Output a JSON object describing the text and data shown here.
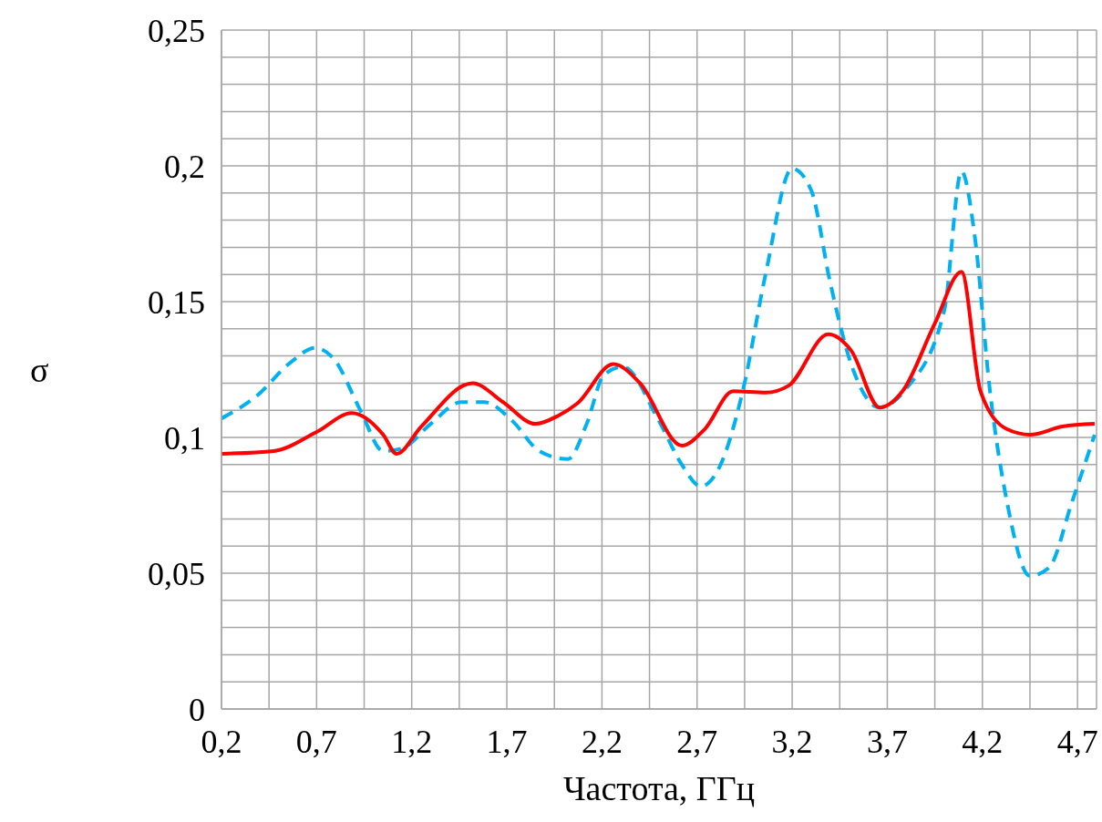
{
  "chart_data": {
    "type": "line",
    "xlabel": "Частота, ГГц",
    "ylabel": "σ",
    "xlim": [
      0.2,
      4.8
    ],
    "ylim": [
      0,
      0.25
    ],
    "xticks": [
      {
        "value": 0.2,
        "label": "0,2"
      },
      {
        "value": 0.45,
        "label": null
      },
      {
        "value": 0.7,
        "label": "0,7"
      },
      {
        "value": 0.95,
        "label": null
      },
      {
        "value": 1.2,
        "label": "1,2"
      },
      {
        "value": 1.45,
        "label": null
      },
      {
        "value": 1.7,
        "label": "1,7"
      },
      {
        "value": 1.95,
        "label": null
      },
      {
        "value": 2.2,
        "label": "2,2"
      },
      {
        "value": 2.45,
        "label": null
      },
      {
        "value": 2.7,
        "label": "2,7"
      },
      {
        "value": 2.95,
        "label": null
      },
      {
        "value": 3.2,
        "label": "3,2"
      },
      {
        "value": 3.45,
        "label": null
      },
      {
        "value": 3.7,
        "label": "3,7"
      },
      {
        "value": 3.95,
        "label": null
      },
      {
        "value": 4.2,
        "label": "4,2"
      },
      {
        "value": 4.45,
        "label": null
      },
      {
        "value": 4.7,
        "label": "4,7"
      }
    ],
    "yticks": [
      0,
      {
        "value": 0.01,
        "label": null
      },
      {
        "value": 0.02,
        "label": null
      },
      {
        "value": 0.03,
        "label": null
      },
      {
        "value": 0.04,
        "label": null
      },
      {
        "value": 0.05,
        "label": "0,05"
      },
      {
        "value": 0.06,
        "label": null
      },
      {
        "value": 0.07,
        "label": null
      },
      {
        "value": 0.08,
        "label": null
      },
      {
        "value": 0.09,
        "label": null
      },
      {
        "value": 0.1,
        "label": "0,1"
      },
      {
        "value": 0.11,
        "label": null
      },
      {
        "value": 0.12,
        "label": null
      },
      {
        "value": 0.13,
        "label": null
      },
      {
        "value": 0.14,
        "label": null
      },
      {
        "value": 0.15,
        "label": "0,15"
      },
      {
        "value": 0.16,
        "label": null
      },
      {
        "value": 0.17,
        "label": null
      },
      {
        "value": 0.18,
        "label": null
      },
      {
        "value": 0.19,
        "label": null
      },
      {
        "value": 0.2,
        "label": "0,2"
      },
      {
        "value": 0.21,
        "label": null
      },
      {
        "value": 0.22,
        "label": null
      },
      {
        "value": 0.23,
        "label": null
      },
      {
        "value": 0.24,
        "label": null
      },
      {
        "value": 0.25,
        "label": "0,25"
      }
    ],
    "grid": true,
    "marker": "none",
    "series": [
      {
        "color": "#00b0f0",
        "line_style": "dashed",
        "x": [
          0.2,
          0.38,
          0.57,
          0.69,
          0.79,
          0.93,
          1.05,
          1.15,
          1.3,
          1.46,
          1.58,
          1.73,
          1.87,
          2.02,
          2.12,
          2.21,
          2.31,
          2.5,
          2.62,
          2.72,
          2.81,
          2.94,
          3.06,
          3.2,
          3.3,
          3.4,
          3.51,
          3.66,
          3.8,
          4.0,
          4.09,
          4.16,
          4.24,
          4.33,
          4.45,
          4.55,
          4.67,
          4.79
        ],
        "values": [
          0.107,
          0.115,
          0.128,
          0.133,
          0.129,
          0.11,
          0.095,
          0.096,
          0.105,
          0.113,
          0.113,
          0.106,
          0.095,
          0.092,
          0.105,
          0.123,
          0.126,
          0.106,
          0.09,
          0.082,
          0.088,
          0.117,
          0.16,
          0.199,
          0.191,
          0.157,
          0.127,
          0.111,
          0.118,
          0.147,
          0.198,
          0.174,
          0.117,
          0.076,
          0.049,
          0.052,
          0.076,
          0.101
        ]
      },
      {
        "color": "#ff0000",
        "line_style": "solid",
        "x": [
          0.2,
          0.475,
          0.7,
          0.885,
          1.05,
          1.12,
          1.25,
          1.52,
          1.68,
          1.85,
          1.97,
          2.07,
          2.26,
          2.4,
          2.62,
          2.74,
          2.89,
          3.06,
          3.18,
          3.39,
          3.51,
          3.66,
          3.78,
          3.95,
          4.09,
          4.19,
          4.33,
          4.45,
          4.62,
          4.79
        ],
        "values": [
          0.094,
          0.095,
          0.102,
          0.109,
          0.101,
          0.094,
          0.104,
          0.12,
          0.113,
          0.105,
          0.108,
          0.1125,
          0.127,
          0.12,
          0.097,
          0.103,
          0.117,
          0.1165,
          0.119,
          0.138,
          0.132,
          0.111,
          0.117,
          0.142,
          0.161,
          0.117,
          0.103,
          0.101,
          0.104,
          0.105
        ]
      }
    ]
  }
}
